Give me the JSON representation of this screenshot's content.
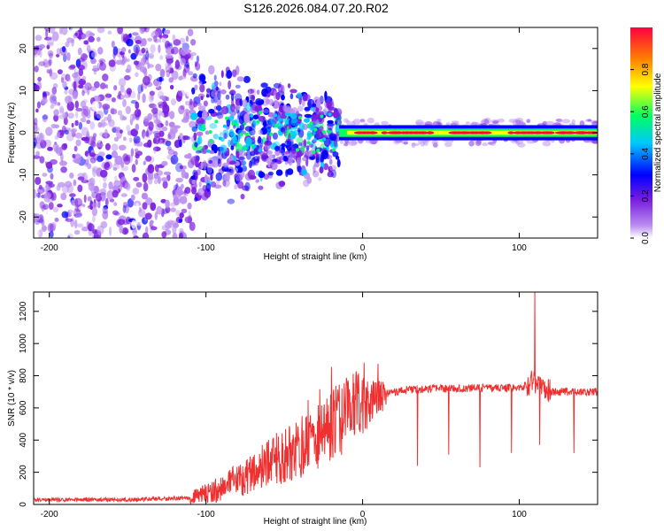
{
  "title": "S126.2026.084.07.20.R02",
  "colors": {
    "spectrogram_base": "#7a1ee0",
    "snr_line": "#f03030"
  },
  "chart_data": [
    {
      "type": "heatmap",
      "name": "spectrogram",
      "xlabel": "Height of straight line (km)",
      "ylabel": "Frequency (Hz)",
      "xlim": [
        -210,
        150
      ],
      "ylim": [
        -25,
        25
      ],
      "xticks": [
        -200,
        -100,
        0,
        100
      ],
      "yticks": [
        -20,
        -10,
        0,
        10,
        20
      ],
      "colorbar": {
        "label": "Normalized spectral amplitude",
        "range": [
          0,
          1
        ],
        "ticks": [
          "0.0",
          "0.2",
          "0.4",
          "0.6",
          "0.8"
        ],
        "colormap": [
          "#ffffff",
          "#b98df0",
          "#7a1ee0",
          "#0000ff",
          "#00c8ff",
          "#00ff60",
          "#ffff00",
          "#ff8000",
          "#ff0040"
        ]
      },
      "regions": [
        {
          "x_range": [
            -210,
            -108
          ],
          "freq_spread": 25,
          "amplitude": "0.2-0.3",
          "description": "diffuse noise"
        },
        {
          "x_range": [
            -108,
            -15
          ],
          "freq_spread": 12,
          "amplitude": "0.3-0.5"
        },
        {
          "x_range": [
            -15,
            150
          ],
          "center_freq": 0,
          "amplitude": "0.9-1.0",
          "description": "carrier line"
        }
      ]
    },
    {
      "type": "line",
      "name": "snr",
      "xlabel": "Height of straight line (km)",
      "ylabel": "SNR (10 * v/v)",
      "xlim": [
        -210,
        150
      ],
      "ylim": [
        0,
        1320
      ],
      "xticks": [
        -200,
        -100,
        0,
        100
      ],
      "yticks": [
        0,
        200,
        400,
        600,
        800,
        1000,
        1200
      ],
      "series": [
        {
          "name": "SNR",
          "x": [
            -210,
            -150,
            -110,
            -90,
            -70,
            -50,
            -30,
            -15,
            0,
            15,
            30,
            50,
            100,
            110,
            120,
            150
          ],
          "values": [
            30,
            30,
            40,
            100,
            200,
            300,
            420,
            530,
            620,
            690,
            715,
            720,
            725,
            760,
            700,
            700
          ]
        }
      ],
      "spikes": [
        {
          "x": -20,
          "value": 855
        },
        {
          "x": 35,
          "value": 240
        },
        {
          "x": 55,
          "value": 310
        },
        {
          "x": 75,
          "value": 230
        },
        {
          "x": 95,
          "value": 320
        },
        {
          "x": 110,
          "value": 1320
        },
        {
          "x": 113,
          "value": 370
        },
        {
          "x": 135,
          "value": 320
        }
      ]
    }
  ]
}
